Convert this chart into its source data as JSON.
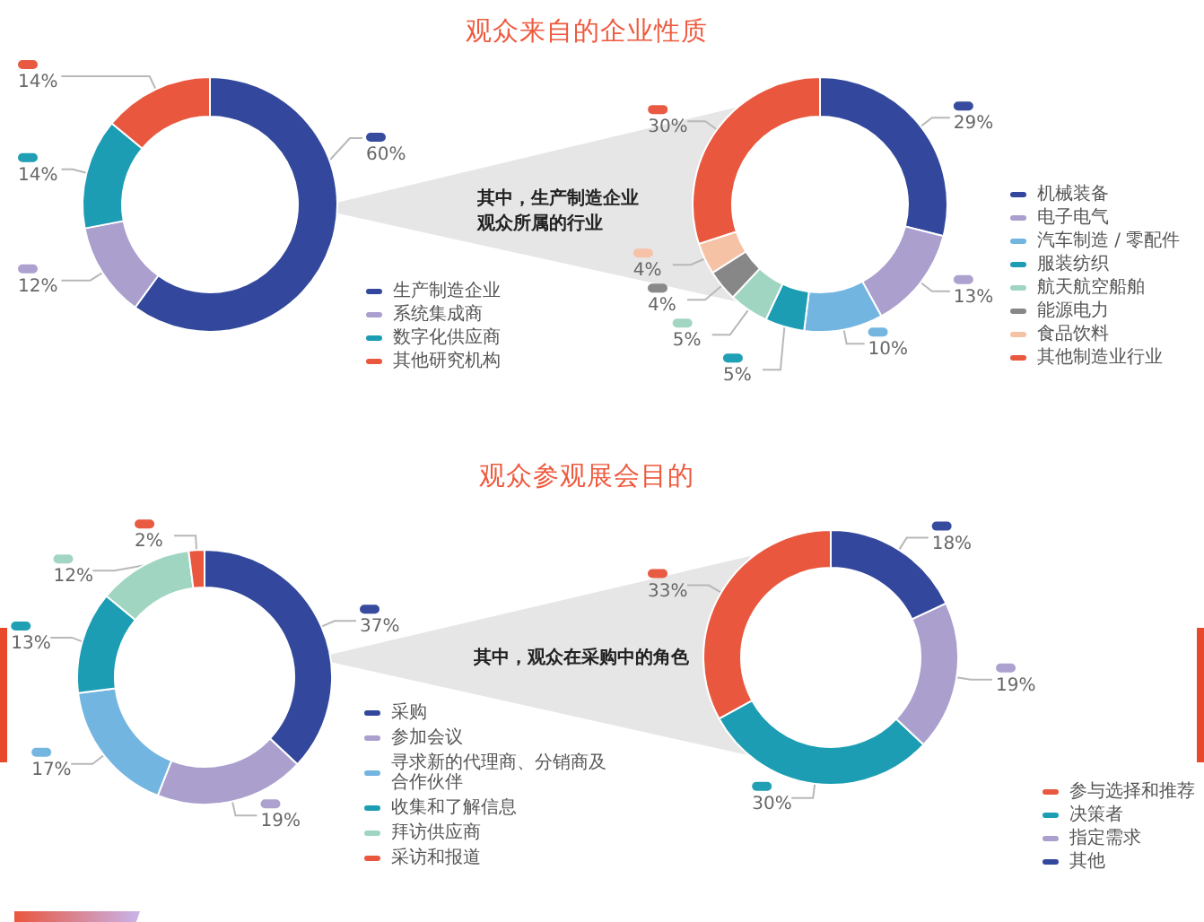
{
  "chart_data": [
    {
      "type": "donut",
      "title": "观众来自的企业性质",
      "categories": [
        "生产制造企业",
        "系统集成商",
        "数字化供应商",
        "其他研究机构"
      ],
      "values": [
        60,
        12,
        14,
        14
      ],
      "colors": [
        "#33489c",
        "#ab9fce",
        "#1d9db4",
        "#e9573e"
      ],
      "value_labels": [
        "60%",
        "12%",
        "14%",
        "14%"
      ],
      "legend": "bottom right"
    },
    {
      "type": "donut",
      "title": "其中，生产制造企业观众所属的行业",
      "categories": [
        "机械装备",
        "电子电气",
        "汽车制造 / 零配件",
        "服装纺织",
        "航天航空船舶",
        "能源电力",
        "食品饮料",
        "其他制造业行业"
      ],
      "values": [
        29,
        13,
        10,
        5,
        5,
        4,
        4,
        30
      ],
      "colors": [
        "#33489c",
        "#ab9fce",
        "#72b5e0",
        "#1d9db4",
        "#a0d5c1",
        "#878787",
        "#f6c2a6",
        "#e9573e"
      ],
      "value_labels": [
        "29%",
        "13%",
        "10%",
        "5%",
        "5%",
        "4%",
        "4%",
        "30%"
      ],
      "legend": "right"
    },
    {
      "type": "donut",
      "title": "观众参观展会目的",
      "categories": [
        "采购",
        "参加会议",
        "寻求新的代理商、分销商及合作伙伴",
        "收集和了解信息",
        "拜访供应商",
        "采访和报道"
      ],
      "values": [
        37,
        19,
        17,
        13,
        12,
        2
      ],
      "colors": [
        "#33489c",
        "#ab9fce",
        "#72b5e0",
        "#1d9db4",
        "#a0d5c1",
        "#e9573e"
      ],
      "value_labels": [
        "37%",
        "19%",
        "17%",
        "13%",
        "12%",
        "2%"
      ],
      "legend": "bottom right"
    },
    {
      "type": "donut",
      "title": "其中，观众在采购中的角色",
      "categories": [
        "参与选择和推荐",
        "决策者",
        "指定需求",
        "其他"
      ],
      "values": [
        33,
        30,
        19,
        18
      ],
      "colors": [
        "#e9573e",
        "#1d9db4",
        "#ab9fce",
        "#33489c"
      ],
      "value_labels": [
        "33%",
        "30%",
        "19%",
        "18%"
      ],
      "legend": "bottom right"
    }
  ]
}
